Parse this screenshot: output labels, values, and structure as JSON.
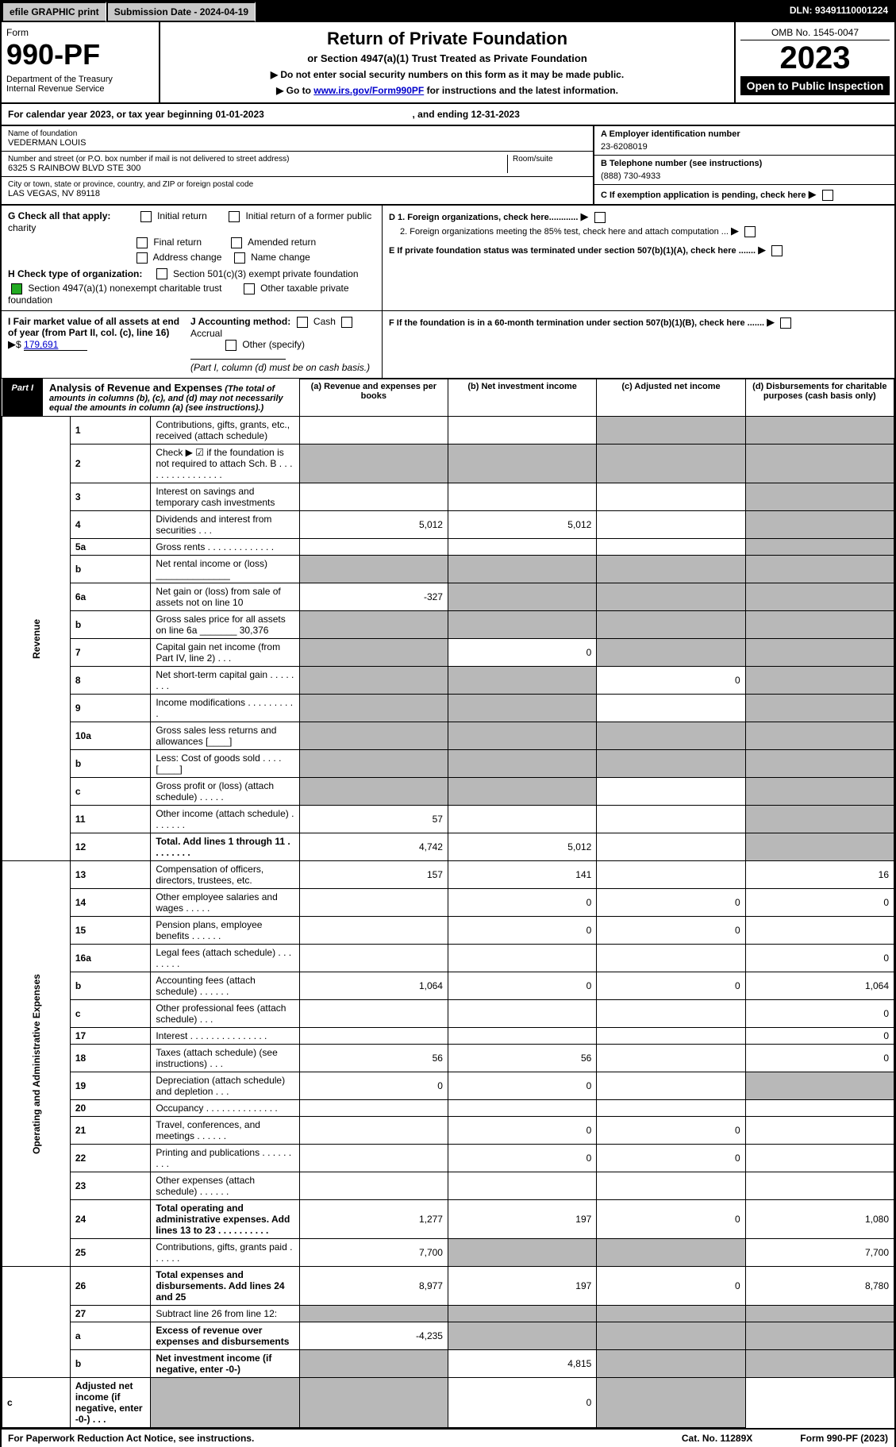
{
  "topbar": {
    "efile": "efile GRAPHIC print",
    "submission": "Submission Date - 2024-04-19",
    "dln": "DLN: 93491110001224"
  },
  "header": {
    "form_word": "Form",
    "form_no": "990-PF",
    "dept": "Department of the Treasury",
    "irs": "Internal Revenue Service",
    "title": "Return of Private Foundation",
    "subtitle": "or Section 4947(a)(1) Trust Treated as Private Foundation",
    "note1": "▶ Do not enter social security numbers on this form as it may be made public.",
    "note2_pre": "▶ Go to ",
    "note2_link": "www.irs.gov/Form990PF",
    "note2_post": " for instructions and the latest information.",
    "omb": "OMB No. 1545-0047",
    "year": "2023",
    "open": "Open to Public Inspection"
  },
  "calyear": {
    "text": "For calendar year 2023, or tax year beginning 01-01-2023",
    "ending": ", and ending 12-31-2023"
  },
  "entity": {
    "name_lbl": "Name of foundation",
    "name": "VEDERMAN LOUIS",
    "addr_lbl": "Number and street (or P.O. box number if mail is not delivered to street address)",
    "addr": "6325 S RAINBOW BLVD STE 300",
    "room_lbl": "Room/suite",
    "city_lbl": "City or town, state or province, country, and ZIP or foreign postal code",
    "city": "LAS VEGAS, NV  89118",
    "ein_lbl": "A Employer identification number",
    "ein": "23-6208019",
    "tel_lbl": "B Telephone number (see instructions)",
    "tel": "(888) 730-4933",
    "c_lbl": "C If exemption application is pending, check here",
    "d1": "D 1. Foreign organizations, check here............",
    "d2": "2. Foreign organizations meeting the 85% test, check here and attach computation ...",
    "e": "E  If private foundation status was terminated under section 507(b)(1)(A), check here .......",
    "f": "F  If the foundation is in a 60-month termination under section 507(b)(1)(B), check here ......."
  },
  "gcheck": {
    "label": "G Check all that apply:",
    "initial": "Initial return",
    "initial_former": "Initial return of a former public charity",
    "final": "Final return",
    "amended": "Amended return",
    "addr_change": "Address change",
    "name_change": "Name change"
  },
  "hcheck": {
    "label": "H Check type of organization:",
    "s501": "Section 501(c)(3) exempt private foundation",
    "s4947": "Section 4947(a)(1) nonexempt charitable trust",
    "other_tax": "Other taxable private foundation"
  },
  "ij": {
    "i_lbl": "I Fair market value of all assets at end of year (from Part II, col. (c), line 16)",
    "i_val": "179,691",
    "j_lbl": "J Accounting method:",
    "cash": "Cash",
    "accrual": "Accrual",
    "other": "Other (specify)",
    "note": "(Part I, column (d) must be on cash basis.)"
  },
  "part1": {
    "tag": "Part I",
    "title": "Analysis of Revenue and Expenses",
    "title_note": "(The total of amounts in columns (b), (c), and (d) may not necessarily equal the amounts in column (a) (see instructions).)",
    "col_a": "(a)  Revenue and expenses per books",
    "col_b": "(b)  Net investment income",
    "col_c": "(c)  Adjusted net income",
    "col_d": "(d)  Disbursements for charitable purposes (cash basis only)"
  },
  "sections": {
    "revenue": "Revenue",
    "opex": "Operating and Administrative Expenses"
  },
  "rows": [
    {
      "n": "1",
      "d": "Contributions, gifts, grants, etc., received (attach schedule)",
      "a": "",
      "b": "",
      "c": "shade",
      "dd": "shade"
    },
    {
      "n": "2",
      "d": "Check ▶ ☑ if the foundation is not required to attach Sch. B  .  .  .  .  .  .  .  .  .  .  .  .  .  .  .  .",
      "a": "shade",
      "b": "shade",
      "c": "shade",
      "dd": "shade"
    },
    {
      "n": "3",
      "d": "Interest on savings and temporary cash investments",
      "a": "",
      "b": "",
      "c": "",
      "dd": "shade"
    },
    {
      "n": "4",
      "d": "Dividends and interest from securities   .  .  .",
      "a": "5,012",
      "b": "5,012",
      "c": "",
      "dd": "shade"
    },
    {
      "n": "5a",
      "d": "Gross rents   .  .  .  .  .  .  .  .  .  .  .  .  .",
      "a": "",
      "b": "",
      "c": "",
      "dd": "shade"
    },
    {
      "n": "b",
      "d": "Net rental income or (loss)  ______________",
      "a": "shade",
      "b": "shade",
      "c": "shade",
      "dd": "shade"
    },
    {
      "n": "6a",
      "d": "Net gain or (loss) from sale of assets not on line 10",
      "a": "-327",
      "b": "shade",
      "c": "shade",
      "dd": "shade"
    },
    {
      "n": "b",
      "d": "Gross sales price for all assets on line 6a _______ 30,376",
      "a": "shade",
      "b": "shade",
      "c": "shade",
      "dd": "shade"
    },
    {
      "n": "7",
      "d": "Capital gain net income (from Part IV, line 2)   .  .  .",
      "a": "shade",
      "b": "0",
      "c": "shade",
      "dd": "shade"
    },
    {
      "n": "8",
      "d": "Net short-term capital gain  .  .  .  .  .  .  .  .",
      "a": "shade",
      "b": "shade",
      "c": "0",
      "dd": "shade"
    },
    {
      "n": "9",
      "d": "Income modifications  .  .  .  .  .  .  .  .  .  .",
      "a": "shade",
      "b": "shade",
      "c": "",
      "dd": "shade"
    },
    {
      "n": "10a",
      "d": "Gross sales less returns and allowances  [____]",
      "a": "shade",
      "b": "shade",
      "c": "shade",
      "dd": "shade"
    },
    {
      "n": "b",
      "d": "Less: Cost of goods sold   .  .  .  .  [____]",
      "a": "shade",
      "b": "shade",
      "c": "shade",
      "dd": "shade"
    },
    {
      "n": "c",
      "d": "Gross profit or (loss) (attach schedule)   .  .  .  .  .",
      "a": "shade",
      "b": "shade",
      "c": "",
      "dd": "shade"
    },
    {
      "n": "11",
      "d": "Other income (attach schedule)   .  .  .  .  .  .  .",
      "a": "57",
      "b": "",
      "c": "",
      "dd": "shade"
    },
    {
      "n": "12",
      "d": "Total. Add lines 1 through 11  .  .  .  .  .  .  .  .",
      "a": "4,742",
      "b": "5,012",
      "c": "",
      "dd": "shade",
      "bold": true
    },
    {
      "n": "13",
      "d": "Compensation of officers, directors, trustees, etc.",
      "a": "157",
      "b": "141",
      "c": "",
      "dd": "16"
    },
    {
      "n": "14",
      "d": "Other employee salaries and wages   .  .  .  .  .",
      "a": "",
      "b": "0",
      "c": "0",
      "dd": "0"
    },
    {
      "n": "15",
      "d": "Pension plans, employee benefits  .  .  .  .  .  .",
      "a": "",
      "b": "0",
      "c": "0",
      "dd": ""
    },
    {
      "n": "16a",
      "d": "Legal fees (attach schedule)  .  .  .  .  .  .  .  .",
      "a": "",
      "b": "",
      "c": "",
      "dd": "0"
    },
    {
      "n": "b",
      "d": "Accounting fees (attach schedule)  .  .  .  .  .  .",
      "a": "1,064",
      "b": "0",
      "c": "0",
      "dd": "1,064"
    },
    {
      "n": "c",
      "d": "Other professional fees (attach schedule)   .  .  .",
      "a": "",
      "b": "",
      "c": "",
      "dd": "0"
    },
    {
      "n": "17",
      "d": "Interest  .  .  .  .  .  .  .  .  .  .  .  .  .  .  .",
      "a": "",
      "b": "",
      "c": "",
      "dd": "0"
    },
    {
      "n": "18",
      "d": "Taxes (attach schedule) (see instructions)   .  .  .",
      "a": "56",
      "b": "56",
      "c": "",
      "dd": "0"
    },
    {
      "n": "19",
      "d": "Depreciation (attach schedule) and depletion   .  .  .",
      "a": "0",
      "b": "0",
      "c": "",
      "dd": "shade"
    },
    {
      "n": "20",
      "d": "Occupancy  .  .  .  .  .  .  .  .  .  .  .  .  .  .",
      "a": "",
      "b": "",
      "c": "",
      "dd": ""
    },
    {
      "n": "21",
      "d": "Travel, conferences, and meetings  .  .  .  .  .  .",
      "a": "",
      "b": "0",
      "c": "0",
      "dd": ""
    },
    {
      "n": "22",
      "d": "Printing and publications  .  .  .  .  .  .  .  .  .",
      "a": "",
      "b": "0",
      "c": "0",
      "dd": ""
    },
    {
      "n": "23",
      "d": "Other expenses (attach schedule)  .  .  .  .  .  .",
      "a": "",
      "b": "",
      "c": "",
      "dd": ""
    },
    {
      "n": "24",
      "d": "Total operating and administrative expenses. Add lines 13 to 23  .  .  .  .  .  .  .  .  .  .",
      "a": "1,277",
      "b": "197",
      "c": "0",
      "dd": "1,080",
      "bold": true
    },
    {
      "n": "25",
      "d": "Contributions, gifts, grants paid   .  .  .  .  .  .",
      "a": "7,700",
      "b": "shade",
      "c": "shade",
      "dd": "7,700"
    },
    {
      "n": "26",
      "d": "Total expenses and disbursements. Add lines 24 and 25",
      "a": "8,977",
      "b": "197",
      "c": "0",
      "dd": "8,780",
      "bold": true
    },
    {
      "n": "27",
      "d": "Subtract line 26 from line 12:",
      "a": "shade",
      "b": "shade",
      "c": "shade",
      "dd": "shade"
    },
    {
      "n": "a",
      "d": "Excess of revenue over expenses and disbursements",
      "a": "-4,235",
      "b": "shade",
      "c": "shade",
      "dd": "shade",
      "bold": true
    },
    {
      "n": "b",
      "d": "Net investment income (if negative, enter -0-)",
      "a": "shade",
      "b": "4,815",
      "c": "shade",
      "dd": "shade",
      "bold": true
    },
    {
      "n": "c",
      "d": "Adjusted net income (if negative, enter -0-)   .  .  .",
      "a": "shade",
      "b": "shade",
      "c": "0",
      "dd": "shade",
      "bold": true
    }
  ],
  "footer": {
    "left": "For Paperwork Reduction Act Notice, see instructions.",
    "mid": "Cat. No. 11289X",
    "right": "Form 990-PF (2023)"
  },
  "colors": {
    "link": "#0000cc",
    "shade": "#b8b8b8",
    "check_green": "#22aa22"
  }
}
